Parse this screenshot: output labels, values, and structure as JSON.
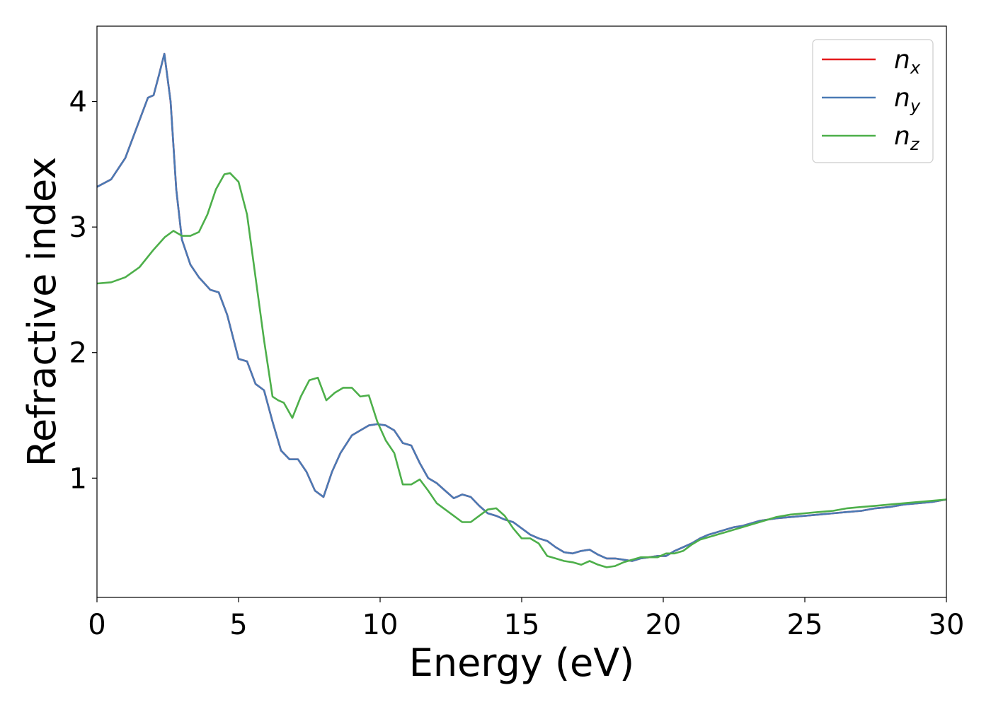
{
  "chart_data": {
    "type": "line",
    "xlabel": "Energy (eV)",
    "ylabel": "Refractive index",
    "xlim": [
      0,
      30
    ],
    "ylim": [
      0.05,
      4.6
    ],
    "xticks": [
      0,
      5,
      10,
      15,
      20,
      25,
      30
    ],
    "xtick_labels": [
      "0",
      "5",
      "10",
      "15",
      "20",
      "25",
      "30"
    ],
    "yticks": [
      1,
      2,
      3,
      4
    ],
    "ytick_labels": [
      "1",
      "2",
      "3",
      "4"
    ],
    "grid": false,
    "legend_position": "top-right",
    "series": [
      {
        "name": "n_x",
        "legend_base": "n",
        "legend_sub": "x",
        "color": "#e41a1c",
        "x": [
          0,
          0.5,
          1.0,
          1.5,
          1.8,
          2.0,
          2.2,
          2.38,
          2.6,
          2.8,
          3.0,
          3.3,
          3.6,
          3.8,
          4.0,
          4.3,
          4.6,
          5.0,
          5.3,
          5.6,
          5.9,
          6.2,
          6.5,
          6.8,
          7.1,
          7.4,
          7.7,
          8.0,
          8.3,
          8.6,
          9.0,
          9.3,
          9.6,
          9.9,
          10.2,
          10.5,
          10.8,
          11.1,
          11.4,
          11.7,
          12.0,
          12.3,
          12.6,
          12.9,
          13.2,
          13.5,
          13.8,
          14.1,
          14.4,
          14.7,
          15.0,
          15.3,
          15.6,
          15.9,
          16.2,
          16.5,
          16.8,
          17.1,
          17.4,
          17.7,
          18.0,
          18.3,
          18.6,
          18.9,
          19.2,
          19.5,
          19.8,
          20.1,
          20.4,
          20.7,
          21.0,
          21.3,
          21.6,
          21.9,
          22.2,
          22.5,
          22.8,
          23.1,
          23.4,
          23.7,
          24.0,
          24.5,
          25.0,
          25.5,
          26.0,
          26.5,
          27.0,
          27.5,
          28.0,
          28.5,
          29.0,
          29.5,
          30.0
        ],
        "y": [
          3.32,
          3.38,
          3.55,
          3.85,
          4.03,
          4.05,
          4.22,
          4.38,
          4.0,
          3.3,
          2.9,
          2.7,
          2.6,
          2.55,
          2.5,
          2.48,
          2.3,
          1.95,
          1.93,
          1.75,
          1.7,
          1.45,
          1.22,
          1.15,
          1.15,
          1.05,
          0.9,
          0.85,
          1.05,
          1.2,
          1.34,
          1.38,
          1.42,
          1.43,
          1.42,
          1.38,
          1.28,
          1.26,
          1.12,
          1.0,
          0.96,
          0.9,
          0.84,
          0.87,
          0.85,
          0.78,
          0.72,
          0.7,
          0.67,
          0.65,
          0.6,
          0.55,
          0.52,
          0.5,
          0.45,
          0.41,
          0.4,
          0.42,
          0.43,
          0.39,
          0.36,
          0.36,
          0.35,
          0.34,
          0.36,
          0.37,
          0.38,
          0.38,
          0.42,
          0.45,
          0.48,
          0.52,
          0.55,
          0.57,
          0.59,
          0.61,
          0.62,
          0.64,
          0.66,
          0.67,
          0.68,
          0.69,
          0.7,
          0.71,
          0.72,
          0.73,
          0.74,
          0.76,
          0.77,
          0.79,
          0.8,
          0.81,
          0.83
        ]
      },
      {
        "name": "n_y",
        "legend_base": "n",
        "legend_sub": "y",
        "color": "#4a7ab5",
        "x": [
          0,
          0.5,
          1.0,
          1.5,
          1.8,
          2.0,
          2.2,
          2.38,
          2.6,
          2.8,
          3.0,
          3.3,
          3.6,
          3.8,
          4.0,
          4.3,
          4.6,
          5.0,
          5.3,
          5.6,
          5.9,
          6.2,
          6.5,
          6.8,
          7.1,
          7.4,
          7.7,
          8.0,
          8.3,
          8.6,
          9.0,
          9.3,
          9.6,
          9.9,
          10.2,
          10.5,
          10.8,
          11.1,
          11.4,
          11.7,
          12.0,
          12.3,
          12.6,
          12.9,
          13.2,
          13.5,
          13.8,
          14.1,
          14.4,
          14.7,
          15.0,
          15.3,
          15.6,
          15.9,
          16.2,
          16.5,
          16.8,
          17.1,
          17.4,
          17.7,
          18.0,
          18.3,
          18.6,
          18.9,
          19.2,
          19.5,
          19.8,
          20.1,
          20.4,
          20.7,
          21.0,
          21.3,
          21.6,
          21.9,
          22.2,
          22.5,
          22.8,
          23.1,
          23.4,
          23.7,
          24.0,
          24.5,
          25.0,
          25.5,
          26.0,
          26.5,
          27.0,
          27.5,
          28.0,
          28.5,
          29.0,
          29.5,
          30.0
        ],
        "y": [
          3.32,
          3.38,
          3.55,
          3.85,
          4.03,
          4.05,
          4.22,
          4.38,
          4.0,
          3.3,
          2.9,
          2.7,
          2.6,
          2.55,
          2.5,
          2.48,
          2.3,
          1.95,
          1.93,
          1.75,
          1.7,
          1.45,
          1.22,
          1.15,
          1.15,
          1.05,
          0.9,
          0.85,
          1.05,
          1.2,
          1.34,
          1.38,
          1.42,
          1.43,
          1.42,
          1.38,
          1.28,
          1.26,
          1.12,
          1.0,
          0.96,
          0.9,
          0.84,
          0.87,
          0.85,
          0.78,
          0.72,
          0.7,
          0.67,
          0.65,
          0.6,
          0.55,
          0.52,
          0.5,
          0.45,
          0.41,
          0.4,
          0.42,
          0.43,
          0.39,
          0.36,
          0.36,
          0.35,
          0.34,
          0.36,
          0.37,
          0.38,
          0.38,
          0.42,
          0.45,
          0.48,
          0.52,
          0.55,
          0.57,
          0.59,
          0.61,
          0.62,
          0.64,
          0.66,
          0.67,
          0.68,
          0.69,
          0.7,
          0.71,
          0.72,
          0.73,
          0.74,
          0.76,
          0.77,
          0.79,
          0.8,
          0.81,
          0.83
        ]
      },
      {
        "name": "n_z",
        "legend_base": "n",
        "legend_sub": "z",
        "color": "#4daf4a",
        "x": [
          0,
          0.5,
          1.0,
          1.5,
          2.0,
          2.4,
          2.7,
          3.0,
          3.3,
          3.6,
          3.9,
          4.2,
          4.5,
          4.7,
          5.0,
          5.3,
          5.6,
          5.9,
          6.2,
          6.4,
          6.6,
          6.9,
          7.2,
          7.5,
          7.8,
          8.1,
          8.4,
          8.7,
          9.0,
          9.3,
          9.6,
          9.9,
          10.2,
          10.5,
          10.8,
          11.1,
          11.4,
          11.7,
          12.0,
          12.3,
          12.6,
          12.9,
          13.2,
          13.5,
          13.8,
          14.1,
          14.4,
          14.7,
          15.0,
          15.3,
          15.6,
          15.9,
          16.2,
          16.5,
          16.8,
          17.1,
          17.4,
          17.7,
          18.0,
          18.3,
          18.6,
          18.9,
          19.2,
          19.5,
          19.8,
          20.1,
          20.4,
          20.7,
          21.0,
          21.3,
          21.6,
          21.9,
          22.2,
          22.5,
          22.8,
          23.1,
          23.4,
          23.7,
          24.0,
          24.5,
          25.0,
          25.5,
          26.0,
          26.5,
          27.0,
          27.5,
          28.0,
          28.5,
          29.0,
          29.5,
          30.0
        ],
        "y": [
          2.55,
          2.56,
          2.6,
          2.68,
          2.82,
          2.92,
          2.97,
          2.93,
          2.93,
          2.96,
          3.1,
          3.3,
          3.42,
          3.43,
          3.36,
          3.1,
          2.6,
          2.1,
          1.65,
          1.62,
          1.6,
          1.48,
          1.65,
          1.78,
          1.8,
          1.62,
          1.68,
          1.72,
          1.72,
          1.65,
          1.66,
          1.45,
          1.3,
          1.2,
          0.95,
          0.95,
          0.99,
          0.9,
          0.8,
          0.75,
          0.7,
          0.65,
          0.65,
          0.7,
          0.75,
          0.76,
          0.7,
          0.6,
          0.52,
          0.52,
          0.48,
          0.38,
          0.36,
          0.34,
          0.33,
          0.31,
          0.34,
          0.31,
          0.29,
          0.3,
          0.33,
          0.35,
          0.37,
          0.37,
          0.37,
          0.4,
          0.4,
          0.42,
          0.47,
          0.51,
          0.53,
          0.55,
          0.57,
          0.59,
          0.61,
          0.63,
          0.65,
          0.67,
          0.69,
          0.71,
          0.72,
          0.73,
          0.74,
          0.76,
          0.77,
          0.78,
          0.79,
          0.8,
          0.81,
          0.82,
          0.83
        ]
      }
    ]
  }
}
